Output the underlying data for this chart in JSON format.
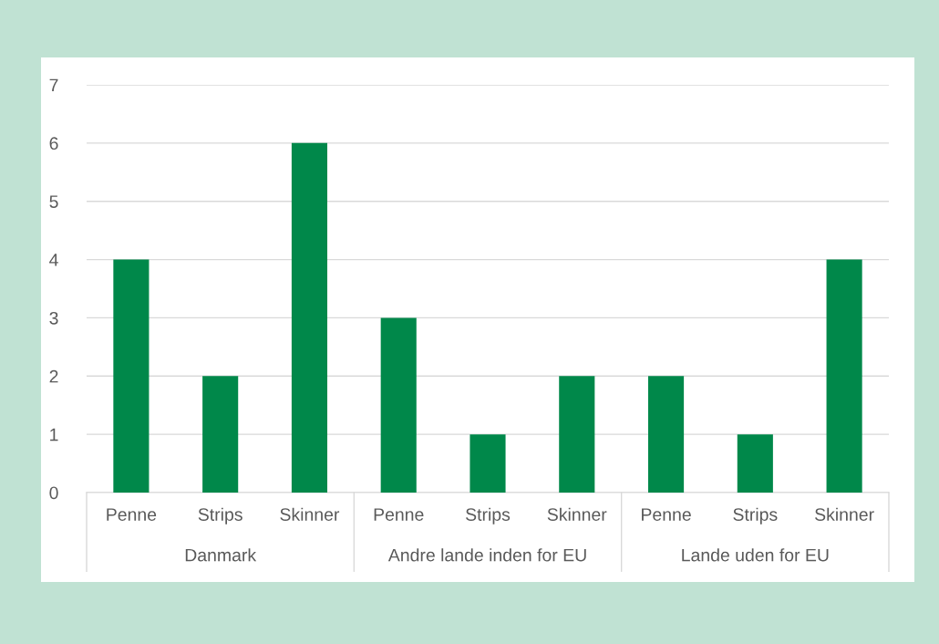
{
  "chart_data": {
    "type": "bar",
    "categories": [
      "Penne",
      "Strips",
      "Skinner",
      "Penne",
      "Strips",
      "Skinner",
      "Penne",
      "Strips",
      "Skinner"
    ],
    "values": [
      4,
      2,
      6,
      3,
      1,
      2,
      2,
      1,
      4
    ],
    "color": "#00884a",
    "ylim": [
      0,
      7
    ],
    "yticks": [
      0,
      1,
      2,
      3,
      4,
      5,
      6,
      7
    ],
    "grid": "y",
    "annotations": [
      "Danmark",
      "Andre lande inden for EU",
      "Lande uden for EU"
    ]
  }
}
